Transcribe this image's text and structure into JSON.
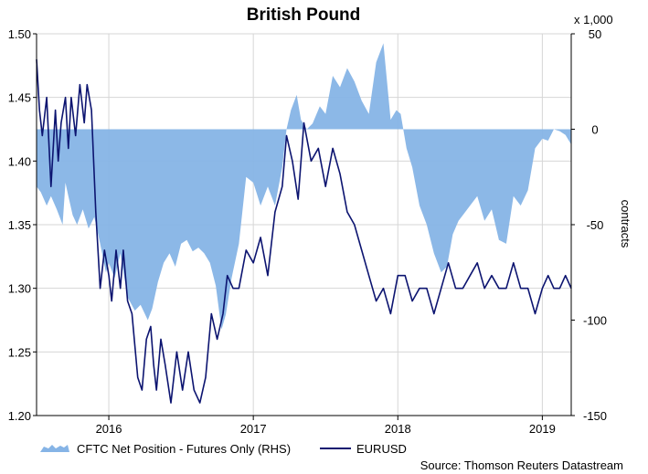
{
  "chart_data": {
    "type": "area+line",
    "title": "British Pound",
    "source": "Source: Thomson Reuters Datastream",
    "y_left": {
      "ticks": [
        "1.20",
        "1.25",
        "1.30",
        "1.35",
        "1.40",
        "1.45",
        "1.50"
      ],
      "lim": [
        1.2,
        1.5
      ]
    },
    "y_right": {
      "label": "contracts",
      "unit_label": "x 1,000",
      "ticks": [
        "50",
        "0",
        "-50",
        "-100",
        "-150"
      ],
      "lim": [
        -150,
        50
      ]
    },
    "x": {
      "ticks": [
        "2016",
        "2017",
        "2018",
        "2019"
      ],
      "tick_positions": [
        2016.0,
        2017.0,
        2018.0,
        2019.0
      ],
      "lim": [
        2015.5,
        2019.2
      ]
    },
    "grid": true,
    "legend": [
      {
        "label": "CFTC Net Position - Futures Only (RHS)",
        "color": "#86b4e6"
      },
      {
        "label": "EURUSD",
        "color": "#0c1470"
      }
    ],
    "series": [
      {
        "name": "CFTC Net Position - Futures Only (RHS)",
        "axis": "right",
        "style": "area",
        "color": "#86b4e6",
        "x": [
          2015.5,
          2015.53,
          2015.57,
          2015.6,
          2015.64,
          2015.68,
          2015.7,
          2015.72,
          2015.75,
          2015.78,
          2015.82,
          2015.86,
          2015.9,
          2015.94,
          2015.98,
          2016.0,
          2016.04,
          2016.08,
          2016.13,
          2016.18,
          2016.22,
          2016.27,
          2016.3,
          2016.34,
          2016.38,
          2016.42,
          2016.46,
          2016.5,
          2016.54,
          2016.58,
          2016.62,
          2016.66,
          2016.7,
          2016.74,
          2016.78,
          2016.81,
          2016.85,
          2016.9,
          2016.95,
          2017.0,
          2017.05,
          2017.1,
          2017.15,
          2017.2,
          2017.23,
          2017.26,
          2017.3,
          2017.33,
          2017.37,
          2017.41,
          2017.46,
          2017.5,
          2017.55,
          2017.6,
          2017.65,
          2017.7,
          2017.75,
          2017.8,
          2017.85,
          2017.9,
          2017.95,
          2017.99,
          2018.02,
          2018.06,
          2018.1,
          2018.15,
          2018.2,
          2018.25,
          2018.3,
          2018.34,
          2018.38,
          2018.42,
          2018.46,
          2018.5,
          2018.55,
          2018.6,
          2018.65,
          2018.7,
          2018.75,
          2018.8,
          2018.85,
          2018.9,
          2018.95,
          2019.0,
          2019.04,
          2019.08,
          2019.12,
          2019.16,
          2019.2
        ],
        "values": [
          -30,
          -33,
          -40,
          -35,
          -42,
          -50,
          -28,
          -35,
          -45,
          -50,
          -42,
          -52,
          -46,
          -60,
          -75,
          -70,
          -78,
          -65,
          -88,
          -95,
          -92,
          -100,
          -94,
          -80,
          -70,
          -65,
          -72,
          -60,
          -58,
          -64,
          -62,
          -65,
          -70,
          -82,
          -105,
          -97,
          -78,
          -60,
          -25,
          -28,
          -40,
          -30,
          -40,
          -20,
          0,
          10,
          18,
          5,
          0,
          3,
          12,
          8,
          28,
          22,
          32,
          25,
          15,
          8,
          35,
          45,
          5,
          10,
          8,
          -10,
          -20,
          -40,
          -50,
          -65,
          -75,
          -72,
          -55,
          -48,
          -44,
          -40,
          -35,
          -48,
          -42,
          -58,
          -60,
          -35,
          -40,
          -32,
          -10,
          -5,
          -6,
          0,
          -1,
          -3,
          -8
        ]
      },
      {
        "name": "EURUSD",
        "axis": "left",
        "style": "line",
        "color": "#0c1470",
        "x": [
          2015.5,
          2015.52,
          2015.54,
          2015.57,
          2015.6,
          2015.63,
          2015.65,
          2015.67,
          2015.7,
          2015.72,
          2015.74,
          2015.77,
          2015.8,
          2015.83,
          2015.85,
          2015.88,
          2015.91,
          2015.94,
          2015.97,
          2016.0,
          2016.02,
          2016.05,
          2016.08,
          2016.1,
          2016.13,
          2016.16,
          2016.2,
          2016.23,
          2016.26,
          2016.29,
          2016.31,
          2016.33,
          2016.36,
          2016.39,
          2016.43,
          2016.47,
          2016.51,
          2016.55,
          2016.59,
          2016.63,
          2016.67,
          2016.71,
          2016.75,
          2016.79,
          2016.82,
          2016.86,
          2016.9,
          2016.95,
          2017.0,
          2017.05,
          2017.1,
          2017.15,
          2017.2,
          2017.23,
          2017.27,
          2017.31,
          2017.35,
          2017.4,
          2017.45,
          2017.5,
          2017.55,
          2017.6,
          2017.65,
          2017.7,
          2017.75,
          2017.8,
          2017.85,
          2017.9,
          2017.95,
          2018.0,
          2018.05,
          2018.1,
          2018.15,
          2018.2,
          2018.25,
          2018.3,
          2018.35,
          2018.4,
          2018.45,
          2018.5,
          2018.55,
          2018.6,
          2018.65,
          2018.7,
          2018.75,
          2018.8,
          2018.85,
          2018.9,
          2018.95,
          2019.0,
          2019.04,
          2019.08,
          2019.12,
          2019.16,
          2019.2
        ],
        "values": [
          1.48,
          1.44,
          1.42,
          1.45,
          1.38,
          1.44,
          1.4,
          1.43,
          1.45,
          1.41,
          1.45,
          1.42,
          1.46,
          1.43,
          1.46,
          1.44,
          1.36,
          1.3,
          1.33,
          1.31,
          1.29,
          1.33,
          1.3,
          1.33,
          1.29,
          1.28,
          1.23,
          1.22,
          1.26,
          1.27,
          1.24,
          1.22,
          1.26,
          1.24,
          1.21,
          1.25,
          1.22,
          1.25,
          1.22,
          1.21,
          1.23,
          1.28,
          1.26,
          1.28,
          1.31,
          1.3,
          1.3,
          1.33,
          1.32,
          1.34,
          1.31,
          1.36,
          1.38,
          1.42,
          1.4,
          1.37,
          1.43,
          1.4,
          1.41,
          1.38,
          1.41,
          1.39,
          1.36,
          1.35,
          1.33,
          1.31,
          1.29,
          1.3,
          1.28,
          1.31,
          1.31,
          1.29,
          1.3,
          1.3,
          1.28,
          1.3,
          1.32,
          1.3,
          1.3,
          1.31,
          1.32,
          1.3,
          1.31,
          1.3,
          1.3,
          1.32,
          1.3,
          1.3,
          1.28,
          1.3,
          1.31,
          1.3,
          1.3,
          1.31,
          1.3
        ]
      }
    ]
  }
}
